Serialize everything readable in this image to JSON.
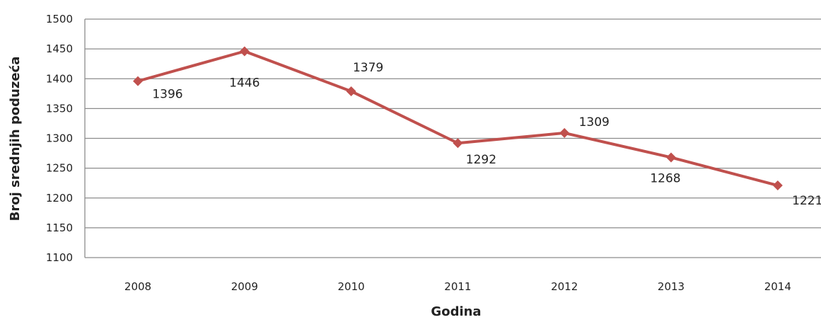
{
  "chart_data": {
    "type": "line",
    "title": "",
    "xlabel": "Godina",
    "ylabel": "Broj srednjih  poduzeća",
    "categories": [
      "2008",
      "2009",
      "2010",
      "2011",
      "2012",
      "2013",
      "2014"
    ],
    "series": [
      {
        "values": [
          1396,
          1446,
          1379,
          1292,
          1309,
          1268,
          1221
        ],
        "color": "#c0504d",
        "marker": "diamond"
      }
    ],
    "data_labels": [
      "1396",
      "1446",
      "1379",
      "1292",
      "1309",
      "1268",
      "1221"
    ],
    "ylim": [
      1100,
      1500
    ],
    "yticks": [
      1100,
      1150,
      1200,
      1250,
      1300,
      1350,
      1400,
      1450,
      1500
    ],
    "ytick_labels": [
      "1100",
      "1150",
      "1200",
      "1250",
      "1300",
      "1350",
      "1400",
      "1450",
      "1500"
    ],
    "grid": true,
    "legend": "none",
    "colors": {
      "line": "#c0504d",
      "grid": "#8c8c8c",
      "text": "#222222"
    }
  }
}
